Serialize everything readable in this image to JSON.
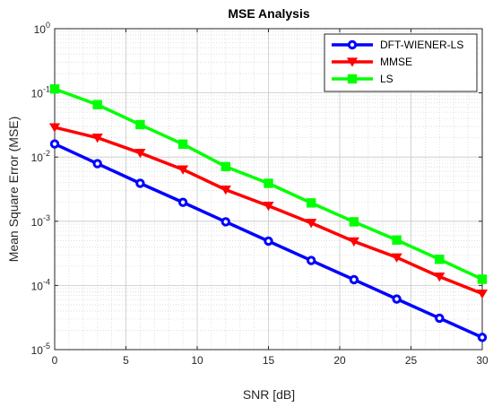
{
  "chart_data": {
    "type": "line",
    "title": "MSE Analysis",
    "xlabel": "SNR [dB]",
    "ylabel": "Mean Square Error (MSE)",
    "xlim": [
      0,
      30
    ],
    "ylim": [
      1e-05,
      1
    ],
    "yscale": "log",
    "grid": true,
    "minor_grid": true,
    "legend_position": "top-right",
    "x": [
      0,
      3,
      6,
      9,
      12,
      15,
      18,
      21,
      24,
      27,
      30
    ],
    "x_ticks": [
      "0",
      "5",
      "10",
      "15",
      "20",
      "25",
      "30"
    ],
    "y_ticks": [
      {
        "base": "10",
        "exp": "0"
      },
      {
        "base": "10",
        "exp": "-1"
      },
      {
        "base": "10",
        "exp": "-2"
      },
      {
        "base": "10",
        "exp": "-3"
      },
      {
        "base": "10",
        "exp": "-4"
      },
      {
        "base": "10",
        "exp": "-5"
      }
    ],
    "series": [
      {
        "name": "DFT-WIENER-LS",
        "color": "#0000ff",
        "marker": "circle",
        "values": [
          0.016,
          0.0079,
          0.0039,
          0.00197,
          0.00098,
          0.00049,
          0.000245,
          0.000123,
          6.15e-05,
          3.09e-05,
          1.55e-05
        ]
      },
      {
        "name": "MMSE",
        "color": "#ff0000",
        "marker": "triangle-down",
        "values": [
          0.029,
          0.02,
          0.0116,
          0.0064,
          0.0031,
          0.00174,
          0.00094,
          0.000485,
          0.000273,
          0.000137,
          7.45e-05
        ]
      },
      {
        "name": "LS",
        "color": "#00ff00",
        "marker": "square",
        "values": [
          0.115,
          0.0655,
          0.032,
          0.0159,
          0.0071,
          0.0039,
          0.00193,
          0.00098,
          0.00051,
          0.000255,
          0.000125
        ]
      }
    ]
  }
}
